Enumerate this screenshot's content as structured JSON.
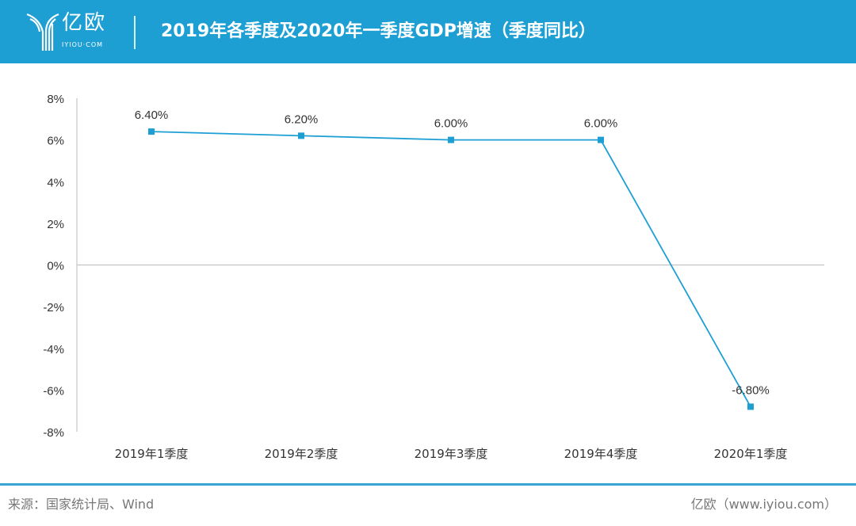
{
  "header": {
    "logo_text": "亿欧",
    "logo_sub": "IYIOU·COM",
    "title": "2019年各季度及2020年一季度GDP增速（季度同比）"
  },
  "chart_data": {
    "type": "line",
    "title": "2019年各季度及2020年一季度GDP增速（季度同比）",
    "categories": [
      "2019年1季度",
      "2019年2季度",
      "2019年3季度",
      "2019年4季度",
      "2020年1季度"
    ],
    "values": [
      6.4,
      6.2,
      6.0,
      6.0,
      -6.8
    ],
    "data_labels": [
      "6.40%",
      "6.20%",
      "6.00%",
      "6.00%",
      "-6.80%"
    ],
    "ylim": [
      -8,
      8
    ],
    "yticks": [
      8,
      6,
      4,
      2,
      0,
      -2,
      -4,
      -6,
      -8
    ],
    "ytick_labels": [
      "8%",
      "6%",
      "4%",
      "2%",
      "0%",
      "-2%",
      "-4%",
      "-6%",
      "-8%"
    ],
    "xlabel": "",
    "ylabel": "",
    "color": "#1e9fd4"
  },
  "footer": {
    "source": "来源：国家统计局、Wind",
    "brand": "亿欧（www.iyiou.com）"
  }
}
